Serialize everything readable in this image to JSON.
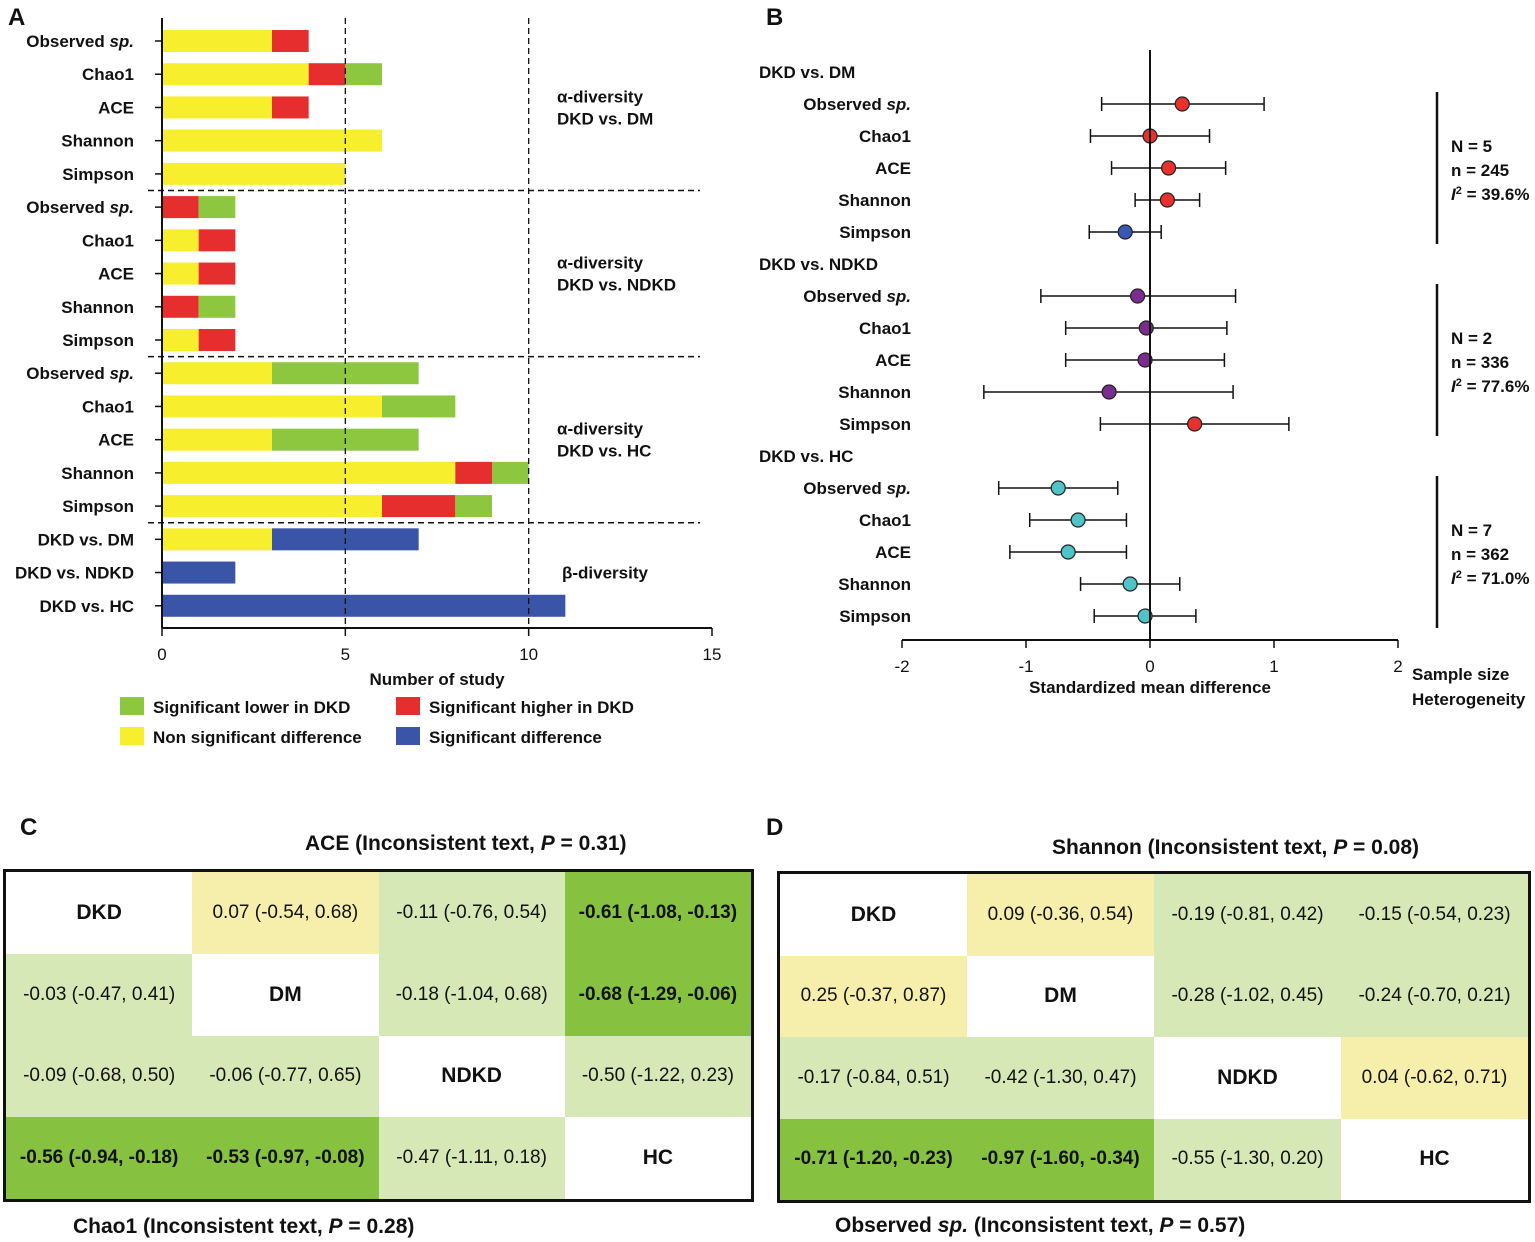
{
  "panels": {
    "a": "A",
    "b": "B",
    "c": "C",
    "d": "D"
  },
  "colors": {
    "lower": "#8dc63f",
    "higher": "#e62e2e",
    "nonsig": "#f7ee2d",
    "sigdiff": "#3a55a8",
    "pointRed": "#e8302c",
    "pointBlue": "#3b57b5",
    "pointPurple": "#7b2d8e",
    "pointCyan": "#4fc3c7",
    "cellStrong": "#86c140",
    "cellLight": "#d6e8b6",
    "cellYellow": "#f6efac",
    "cellWhite": "#ffffff"
  },
  "chart_data": [
    {
      "type": "bar",
      "stacked": true,
      "orientation": "horizontal",
      "xlabel": "Number of study",
      "xlim": [
        0,
        15
      ],
      "xticks": [
        0,
        5,
        10,
        15
      ],
      "reference_lines": [
        5,
        10
      ],
      "categories": [
        "Observed sp.",
        "Chao1",
        "ACE",
        "Shannon",
        "Simpson",
        "Observed sp.",
        "Chao1",
        "ACE",
        "Shannon",
        "Simpson",
        "Observed sp.",
        "Chao1",
        "ACE",
        "Shannon",
        "Simpson",
        "DKD vs. DM",
        "DKD vs. NDKD",
        "DKD vs. HC"
      ],
      "category_main": [
        "Observed ",
        "Chao1",
        "ACE",
        "Shannon",
        "Simpson",
        "Observed ",
        "Chao1",
        "ACE",
        "Shannon",
        "Simpson",
        "Observed ",
        "Chao1",
        "ACE",
        "Shannon",
        "Simpson",
        "DKD vs. DM",
        "DKD vs. NDKD",
        "DKD vs. HC"
      ],
      "category_italic": [
        "sp.",
        "",
        "",
        "",
        "",
        "sp.",
        "",
        "",
        "",
        "",
        "sp.",
        "",
        "",
        "",
        "",
        "",
        "",
        ""
      ],
      "segments": [
        [
          [
            "nonsig",
            3
          ],
          [
            "higher",
            1
          ]
        ],
        [
          [
            "nonsig",
            4
          ],
          [
            "higher",
            1
          ],
          [
            "lower",
            1
          ]
        ],
        [
          [
            "nonsig",
            3
          ],
          [
            "higher",
            1
          ]
        ],
        [
          [
            "nonsig",
            6
          ]
        ],
        [
          [
            "nonsig",
            5
          ]
        ],
        [
          [
            "higher",
            1
          ],
          [
            "lower",
            1
          ]
        ],
        [
          [
            "nonsig",
            1
          ],
          [
            "higher",
            1
          ]
        ],
        [
          [
            "nonsig",
            1
          ],
          [
            "higher",
            1
          ]
        ],
        [
          [
            "higher",
            1
          ],
          [
            "lower",
            1
          ]
        ],
        [
          [
            "nonsig",
            1
          ],
          [
            "higher",
            1
          ]
        ],
        [
          [
            "nonsig",
            3
          ],
          [
            "lower",
            4
          ]
        ],
        [
          [
            "nonsig",
            6
          ],
          [
            "lower",
            2
          ]
        ],
        [
          [
            "nonsig",
            3
          ],
          [
            "lower",
            4
          ]
        ],
        [
          [
            "nonsig",
            8
          ],
          [
            "higher",
            1
          ],
          [
            "lower",
            1
          ]
        ],
        [
          [
            "nonsig",
            6
          ],
          [
            "higher",
            2
          ],
          [
            "lower",
            1
          ]
        ],
        [
          [
            "nonsig",
            3
          ],
          [
            "sigdiff",
            4
          ]
        ],
        [
          [
            "sigdiff",
            2
          ]
        ],
        [
          [
            "sigdiff",
            11
          ]
        ]
      ],
      "group_labels": [
        {
          "line1": "α-diversity",
          "line2": "DKD vs. DM"
        },
        {
          "line1": "α-diversity",
          "line2": "DKD vs. NDKD"
        },
        {
          "line1": "α-diversity",
          "line2": "DKD vs. HC"
        },
        {
          "line1": "β-diversity",
          "line2": ""
        }
      ],
      "legend": [
        {
          "key": "lower",
          "label": "Significant lower in DKD"
        },
        {
          "key": "higher",
          "label": "Significant higher in DKD"
        },
        {
          "key": "nonsig",
          "label": "Non significant difference"
        },
        {
          "key": "sigdiff",
          "label": "Significant difference"
        }
      ]
    },
    {
      "type": "scatter",
      "subtype": "forest",
      "xlabel": "Standardized mean difference",
      "xlim": [
        -2,
        2
      ],
      "xticks": [
        -2,
        -1,
        0,
        1,
        2
      ],
      "side_label_1": "Sample size",
      "side_label_2": "Heterogeneity",
      "groups": [
        {
          "title": "DKD vs. DM",
          "stats": {
            "N": "N = 5",
            "n": "n = 245",
            "het_tail": "= 39.6%"
          },
          "rows": [
            {
              "main": "Observed ",
              "italic": "sp.",
              "est": 0.26,
              "lo": -0.39,
              "hi": 0.92,
              "color": "pointRed"
            },
            {
              "main": "Chao1",
              "italic": "",
              "est": 0.0,
              "lo": -0.48,
              "hi": 0.48,
              "color": "pointRed"
            },
            {
              "main": "ACE",
              "italic": "",
              "est": 0.15,
              "lo": -0.31,
              "hi": 0.61,
              "color": "pointRed"
            },
            {
              "main": "Shannon",
              "italic": "",
              "est": 0.14,
              "lo": -0.12,
              "hi": 0.4,
              "color": "pointRed"
            },
            {
              "main": "Simpson",
              "italic": "",
              "est": -0.2,
              "lo": -0.49,
              "hi": 0.09,
              "color": "pointBlue"
            }
          ]
        },
        {
          "title": "DKD vs. NDKD",
          "stats": {
            "N": "N = 2",
            "n": "n = 336",
            "het_tail": "= 77.6%"
          },
          "rows": [
            {
              "main": "Observed ",
              "italic": "sp.",
              "est": -0.1,
              "lo": -0.88,
              "hi": 0.69,
              "color": "pointPurple"
            },
            {
              "main": "Chao1",
              "italic": "",
              "est": -0.03,
              "lo": -0.68,
              "hi": 0.62,
              "color": "pointPurple"
            },
            {
              "main": "ACE",
              "italic": "",
              "est": -0.04,
              "lo": -0.68,
              "hi": 0.6,
              "color": "pointPurple"
            },
            {
              "main": "Shannon",
              "italic": "",
              "est": -0.33,
              "lo": -1.34,
              "hi": 0.67,
              "color": "pointPurple"
            },
            {
              "main": "Simpson",
              "italic": "",
              "est": 0.36,
              "lo": -0.4,
              "hi": 1.12,
              "color": "pointRed"
            }
          ]
        },
        {
          "title": "DKD vs. HC",
          "stats": {
            "N": "N = 7",
            "n": "n = 362",
            "het_tail": "= 71.0%"
          },
          "rows": [
            {
              "main": "Observed ",
              "italic": "sp.",
              "est": -0.74,
              "lo": -1.22,
              "hi": -0.26,
              "color": "pointCyan"
            },
            {
              "main": "Chao1",
              "italic": "",
              "est": -0.58,
              "lo": -0.97,
              "hi": -0.19,
              "color": "pointCyan"
            },
            {
              "main": "ACE",
              "italic": "",
              "est": -0.66,
              "lo": -1.13,
              "hi": -0.19,
              "color": "pointCyan"
            },
            {
              "main": "Shannon",
              "italic": "",
              "est": -0.16,
              "lo": -0.56,
              "hi": 0.24,
              "color": "pointCyan"
            },
            {
              "main": "Simpson",
              "italic": "",
              "est": -0.04,
              "lo": -0.45,
              "hi": 0.37,
              "color": "pointCyan"
            }
          ]
        }
      ]
    }
  ],
  "matrices": [
    {
      "top_title": {
        "main": "ACE (Inconsistent text, ",
        "p": "P",
        "tail": " = 0.31)"
      },
      "bottom_title": {
        "main": "Chao1 (Inconsistent text, ",
        "p": "P",
        "tail": " = 0.28)"
      },
      "cells": [
        [
          {
            "t": "DKD",
            "c": "cellWhite",
            "diag": true
          },
          {
            "t": "0.07 (-0.54, 0.68)",
            "c": "cellYellow"
          },
          {
            "t": "-0.11 (-0.76, 0.54)",
            "c": "cellLight"
          },
          {
            "t": "-0.61 (-1.08, -0.13)",
            "c": "cellStrong",
            "b": true
          }
        ],
        [
          {
            "t": "-0.03 (-0.47, 0.41)",
            "c": "cellLight"
          },
          {
            "t": "DM",
            "c": "cellWhite",
            "diag": true
          },
          {
            "t": "-0.18 (-1.04, 0.68)",
            "c": "cellLight"
          },
          {
            "t": "-0.68 (-1.29, -0.06)",
            "c": "cellStrong",
            "b": true
          }
        ],
        [
          {
            "t": "-0.09 (-0.68, 0.50)",
            "c": "cellLight"
          },
          {
            "t": "-0.06 (-0.77, 0.65)",
            "c": "cellLight"
          },
          {
            "t": "NDKD",
            "c": "cellWhite",
            "diag": true
          },
          {
            "t": "-0.50 (-1.22, 0.23)",
            "c": "cellLight"
          }
        ],
        [
          {
            "t": "-0.56 (-0.94, -0.18)",
            "c": "cellStrong",
            "b": true
          },
          {
            "t": "-0.53 (-0.97, -0.08)",
            "c": "cellStrong",
            "b": true
          },
          {
            "t": "-0.47 (-1.11, 0.18)",
            "c": "cellLight"
          },
          {
            "t": "HC",
            "c": "cellWhite",
            "diag": true
          }
        ]
      ]
    },
    {
      "top_title": {
        "main": "Shannon (Inconsistent text, ",
        "p": "P",
        "tail": " = 0.08)"
      },
      "bottom_title": {
        "main": "Observed ",
        "italic": "sp.",
        "main2": " (Inconsistent text, ",
        "p": "P",
        "tail": " = 0.57)"
      },
      "cells": [
        [
          {
            "t": "DKD",
            "c": "cellWhite",
            "diag": true
          },
          {
            "t": "0.09 (-0.36, 0.54)",
            "c": "cellYellow"
          },
          {
            "t": "-0.19 (-0.81, 0.42)",
            "c": "cellLight"
          },
          {
            "t": "-0.15 (-0.54, 0.23)",
            "c": "cellLight"
          }
        ],
        [
          {
            "t": "0.25 (-0.37, 0.87)",
            "c": "cellYellow"
          },
          {
            "t": "DM",
            "c": "cellWhite",
            "diag": true
          },
          {
            "t": "-0.28 (-1.02, 0.45)",
            "c": "cellLight"
          },
          {
            "t": "-0.24 (-0.70, 0.21)",
            "c": "cellLight"
          }
        ],
        [
          {
            "t": "-0.17 (-0.84, 0.51)",
            "c": "cellLight"
          },
          {
            "t": "-0.42 (-1.30, 0.47)",
            "c": "cellLight"
          },
          {
            "t": "NDKD",
            "c": "cellWhite",
            "diag": true
          },
          {
            "t": "0.04 (-0.62, 0.71)",
            "c": "cellYellow"
          }
        ],
        [
          {
            "t": "-0.71 (-1.20, -0.23)",
            "c": "cellStrong",
            "b": true
          },
          {
            "t": "-0.97 (-1.60, -0.34)",
            "c": "cellStrong",
            "b": true
          },
          {
            "t": "-0.55 (-1.30, 0.20)",
            "c": "cellLight"
          },
          {
            "t": "HC",
            "c": "cellWhite",
            "diag": true
          }
        ]
      ]
    }
  ]
}
